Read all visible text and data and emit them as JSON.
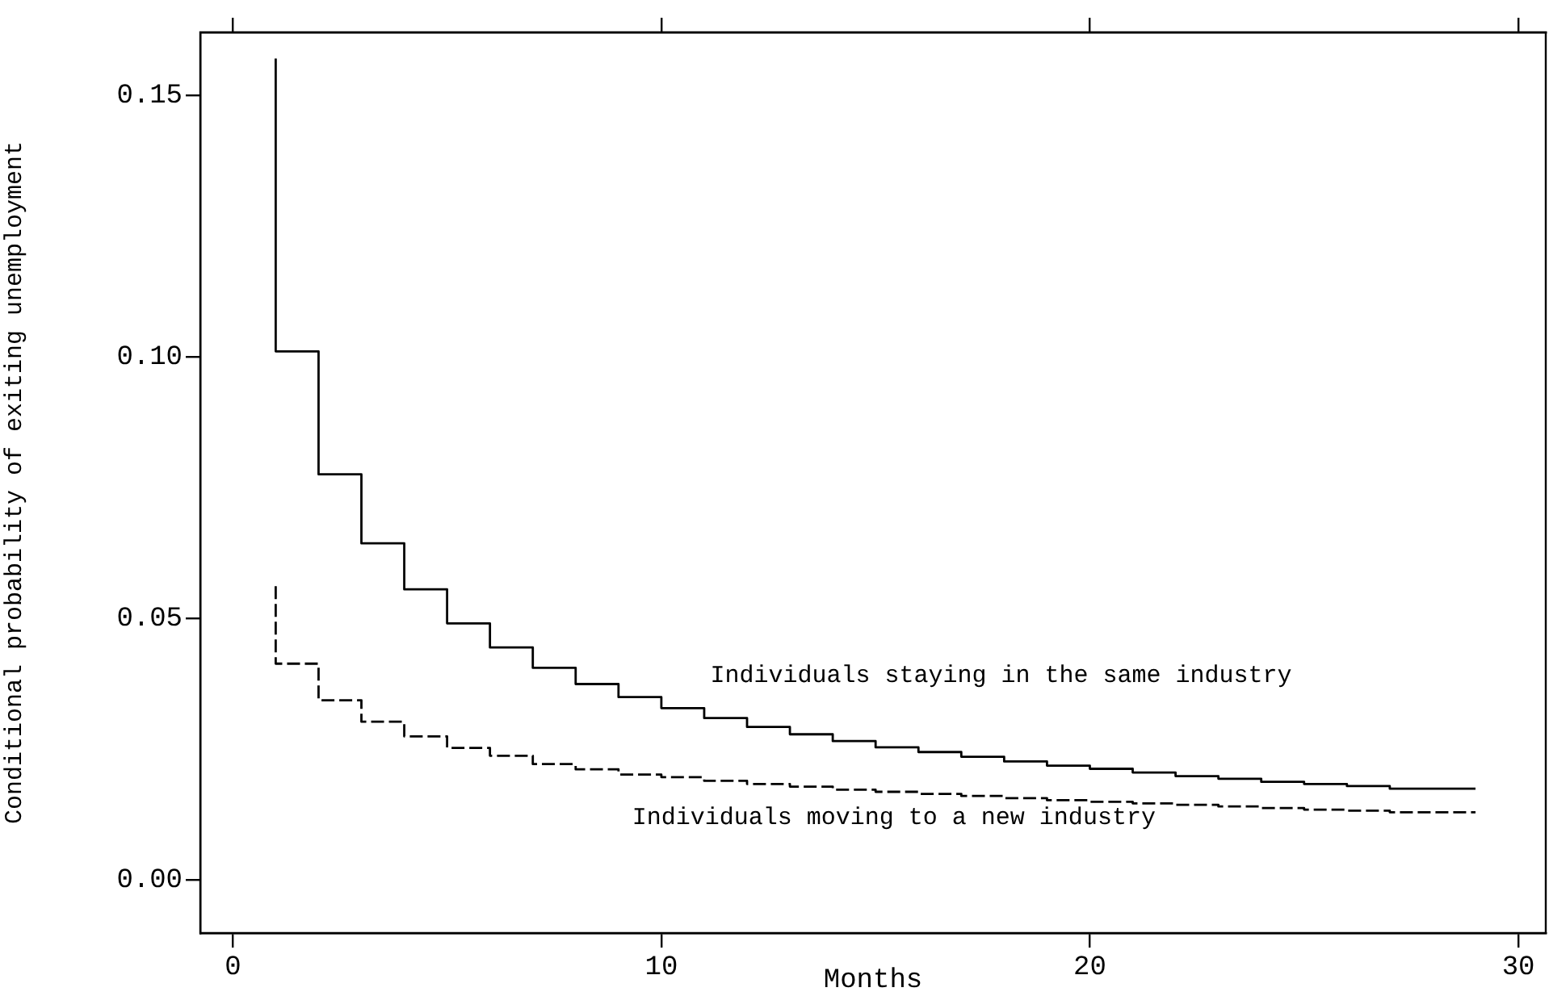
{
  "chart_data": {
    "type": "step",
    "xlabel": "Months",
    "ylabel": "Conditional probability of exiting unemployment",
    "x": [
      1,
      2,
      3,
      4,
      5,
      6,
      7,
      8,
      9,
      10,
      11,
      12,
      13,
      14,
      15,
      16,
      17,
      18,
      19,
      20,
      21,
      22,
      23,
      24,
      25,
      26,
      27,
      28,
      29
    ],
    "series": [
      {
        "color": "#000000",
        "line_style": "solid",
        "values": [
          0.157,
          0.101,
          0.0775,
          0.0643,
          0.0555,
          0.049,
          0.0444,
          0.0405,
          0.0374,
          0.0349,
          0.0328,
          0.0309,
          0.0292,
          0.0278,
          0.0265,
          0.0253,
          0.0244,
          0.0235,
          0.0226,
          0.0218,
          0.0212,
          0.0205,
          0.0198,
          0.0193,
          0.0187,
          0.0183,
          0.0179,
          0.0174,
          0.0174
        ]
      },
      {
        "color": "#000000",
        "line_style": "dashed",
        "values": [
          0.0561,
          0.0413,
          0.0343,
          0.0302,
          0.0274,
          0.0252,
          0.0237,
          0.0221,
          0.0211,
          0.0201,
          0.0196,
          0.0189,
          0.0183,
          0.0178,
          0.0172,
          0.0168,
          0.0164,
          0.016,
          0.0156,
          0.0152,
          0.0149,
          0.0146,
          0.0143,
          0.014,
          0.0137,
          0.0134,
          0.0132,
          0.0129,
          0.0129
        ]
      }
    ],
    "xlim": [
      -0.76,
      30.64
    ],
    "xticks": [
      0,
      10,
      20,
      30
    ],
    "ylim": [
      -0.0102,
      0.162
    ],
    "yticks": [
      {
        "value": 0,
        "label": "0.00"
      },
      {
        "value": 0.05,
        "label": "0.05"
      },
      {
        "value": 0.1,
        "label": "0.10"
      },
      {
        "value": 0.15,
        "label": "0.15"
      }
    ],
    "grid": false,
    "legend": false,
    "marker": "none",
    "annotations": [
      "Individuals staying in the same industry",
      "Individuals moving to a new industry"
    ]
  }
}
